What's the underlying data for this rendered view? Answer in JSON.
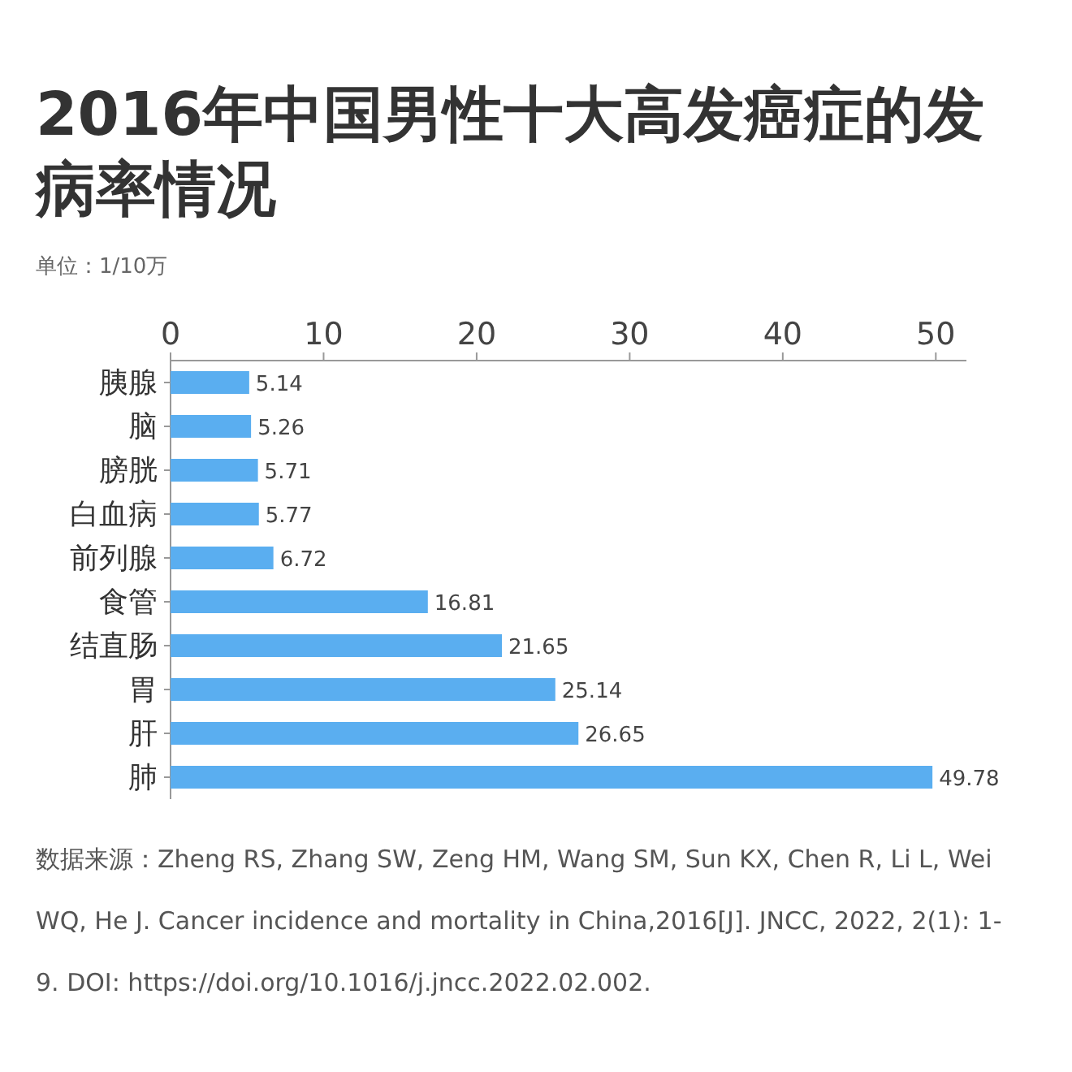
{
  "chart_data": {
    "type": "bar",
    "orientation": "horizontal",
    "title": "2016年中国男性十大高发癌症的发病率情况",
    "subtitle": "单位：1/10万",
    "categories": [
      "胰腺",
      "脑",
      "膀胱",
      "白血病",
      "前列腺",
      "食管",
      "结直肠",
      "胃",
      "肝",
      "肺"
    ],
    "values": [
      5.14,
      5.26,
      5.71,
      5.77,
      6.72,
      16.81,
      21.65,
      25.14,
      26.65,
      49.78
    ],
    "color": "#5aaef0",
    "xlim": [
      0,
      52
    ],
    "xticks": [
      0,
      10,
      20,
      30,
      40,
      50
    ],
    "data_labels": true,
    "grid": false,
    "annotations": [
      "数据来源：Zheng RS, Zhang SW, Zeng HM, Wang SM, Sun KX, Chen R, Li L, Wei WQ, He J. Cancer incidence and mortality in China,2016[J]. JNCC, 2022, 2(1): 1-9. DOI: https://doi.org/10.1016/j.jncc.2022.02.002."
    ]
  }
}
